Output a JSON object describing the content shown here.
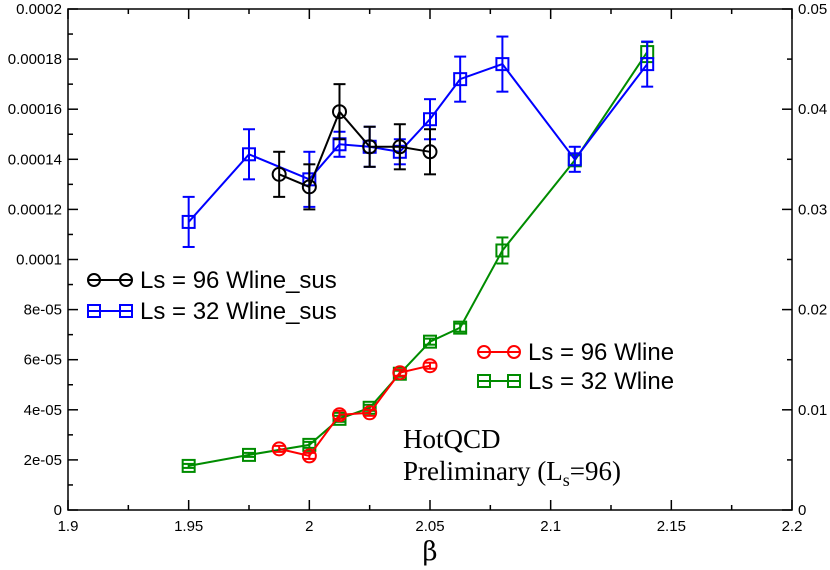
{
  "chart_data": {
    "type": "line",
    "title": "",
    "xlabel": "β",
    "ylabel_left": "",
    "ylabel_right": "",
    "xlim": [
      1.9,
      2.2
    ],
    "ylim_left": [
      0,
      0.0002
    ],
    "ylim_right": [
      0,
      0.05
    ],
    "grid": false,
    "x_ticks": [
      1.9,
      1.95,
      2.0,
      2.05,
      2.1,
      2.15,
      2.2
    ],
    "x_tick_labels": [
      "1.9",
      "1.95",
      "2",
      "2.05",
      "2.1",
      "2.15",
      "2.2"
    ],
    "y_left_ticks": [
      0,
      2e-05,
      4e-05,
      6e-05,
      8e-05,
      0.0001,
      0.00012,
      0.00014,
      0.00016,
      0.00018,
      0.0002
    ],
    "y_left_tick_labels": [
      "0",
      "2e-05",
      "4e-05",
      "6e-05",
      "8e-05",
      "0.0001",
      "0.00012",
      "0.00014",
      "0.00016",
      "0.00018",
      "0.0002"
    ],
    "y_right_ticks": [
      0,
      0.01,
      0.02,
      0.03,
      0.04,
      0.05
    ],
    "y_right_tick_labels": [
      "0",
      "0.01",
      "0.02",
      "0.03",
      "0.04",
      "0.05"
    ],
    "series": [
      {
        "name": "Ls = 96 Wline_sus",
        "axis": "left",
        "color": "#000000",
        "marker": "circle",
        "x": [
          1.9875,
          2.0,
          2.0125,
          2.025,
          2.0375,
          2.05
        ],
        "y": [
          0.000134,
          0.000129,
          0.000159,
          0.000145,
          0.000145,
          0.000143
        ],
        "err": [
          9e-06,
          9e-06,
          1.1e-05,
          8e-06,
          9e-06,
          9e-06
        ]
      },
      {
        "name": "Ls = 32 Wline_sus",
        "axis": "left",
        "color": "#0000ff",
        "marker": "square",
        "x": [
          1.95,
          1.975,
          2.0,
          2.0125,
          2.025,
          2.0375,
          2.05,
          2.0625,
          2.08,
          2.11,
          2.14
        ],
        "y": [
          0.000115,
          0.000142,
          0.000132,
          0.000146,
          0.000145,
          0.000143,
          0.000156,
          0.000172,
          0.000178,
          0.00014,
          0.000178
        ],
        "err": [
          1e-05,
          1e-05,
          1.1e-05,
          5e-06,
          8e-06,
          5e-06,
          8e-06,
          9e-06,
          1.1e-05,
          5e-06,
          9e-06
        ]
      },
      {
        "name": "Ls = 96 Wline",
        "axis": "right",
        "color": "#ff0000",
        "marker": "circle",
        "x": [
          1.9875,
          2.0,
          2.0125,
          2.025,
          2.0375,
          2.05
        ],
        "y": [
          0.0061,
          0.0054,
          0.0095,
          0.0097,
          0.0137,
          0.0144
        ],
        "err": [
          0.0003,
          0.0003,
          0.0004,
          0.0003,
          0.0003,
          0.0003
        ]
      },
      {
        "name": "Ls = 32 Wline",
        "axis": "right",
        "color": "#008c00",
        "marker": "square",
        "x": [
          1.95,
          1.975,
          2.0,
          2.0125,
          2.025,
          2.0375,
          2.05,
          2.0625,
          2.08,
          2.11,
          2.14
        ],
        "y": [
          0.0044,
          0.0055,
          0.0065,
          0.0091,
          0.0102,
          0.0136,
          0.0168,
          0.0182,
          0.0259,
          0.0349,
          0.0457
        ],
        "err": [
          0.0002,
          0.0002,
          0.0003,
          0.0003,
          0.0003,
          0.0003,
          0.0003,
          0.0004,
          0.0013,
          0.0005,
          0.001
        ]
      }
    ],
    "annotation": {
      "line1": "HotQCD",
      "line2_main": "Preliminary (L",
      "line2_sub": "s",
      "line2_end": "=96)"
    }
  }
}
